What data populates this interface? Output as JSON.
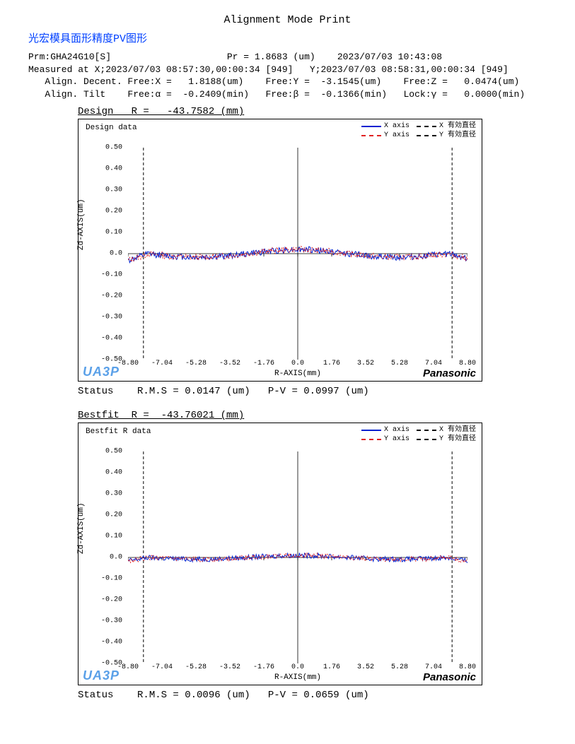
{
  "title_main": "Alignment Mode Print",
  "title_sub": "光宏模具面形精度PV图形",
  "header": {
    "line1": "Prm:GHA24G10[S]                     Pr = 1.8683 (um)    2023/07/03 10:43:08",
    "line2": "Measured at X;2023/07/03 08:57:30,00:00:34 [949]   Y;2023/07/03 08:58:31,00:00:34 [949]",
    "line3": "   Align. Decent. Free:X =   1.8188(um)    Free:Y =  -3.1545(um)    Free:Z =   0.0474(um)",
    "line4": "   Align. Tilt    Free:α =  -0.2409(min)   Free:β =  -0.1366(min)   Lock:γ =   0.0000(min)"
  },
  "legend": {
    "x_axis": "X axis",
    "y_axis": "Y axis",
    "x_eff": "X 有効直径",
    "y_eff": "Y 有効直径",
    "x_color": "#0020d0",
    "y_color": "#e02020"
  },
  "axes": {
    "y_label": "Zd-AXIS(um)",
    "x_label": "R-AXIS(mm)",
    "y_ticks": [
      "0.50",
      "0.40",
      "0.30",
      "0.20",
      "0.10",
      "0.0",
      "-0.10",
      "-0.20",
      "-0.30",
      "-0.40",
      "-0.50"
    ],
    "x_ticks": [
      "-8.80",
      "-7.04",
      "-5.28",
      "-3.52",
      "-1.76",
      "0.0",
      "1.76",
      "3.52",
      "5.28",
      "7.04",
      "8.80"
    ],
    "ylim": [
      -0.5,
      0.5
    ],
    "xlim": [
      -8.8,
      8.8
    ],
    "grid_color": "#cccccc",
    "dash_line_x": [
      -8.0,
      8.0
    ]
  },
  "brand_ua3p": "UA3P",
  "brand_pana": "Panasonic",
  "chart1": {
    "title": "Design   R =   -43.7582 (mm)",
    "inner": "Design data",
    "status": "Status    R.M.S = 0.0147 (um)   P-V = 0.0997 (um)",
    "noise_amp": 0.015,
    "edge_dip1": -0.04,
    "edge_dip2": -0.03,
    "mid_amp": 0.02
  },
  "chart2": {
    "title": "Bestfit  R =  -43.76021 (mm)",
    "inner": "Bestfit R data",
    "status": "Status    R.M.S = 0.0096 (um)   P-V = 0.0659 (um)",
    "noise_amp": 0.012,
    "edge_dip1": -0.02,
    "edge_dip2": -0.02,
    "mid_amp": 0.01
  }
}
